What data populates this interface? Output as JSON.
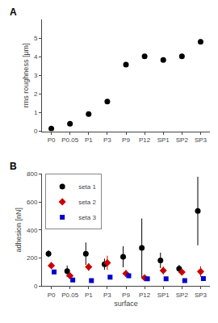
{
  "chart_data": [
    {
      "type": "scatter",
      "annotations": [
        "A"
      ],
      "categories": [
        "P0",
        "P0.05",
        "P1",
        "P3",
        "P9",
        "P12",
        "SP1",
        "SP2",
        "SP3"
      ],
      "values": [
        0.15,
        0.4,
        0.92,
        1.6,
        3.58,
        4.02,
        3.82,
        4.02,
        4.8
      ],
      "errors": [
        0.04,
        0.04,
        0.06,
        0.06,
        0.06,
        0.06,
        0.06,
        0.06,
        0.06
      ],
      "color": "#000000",
      "marker": "circle",
      "ylabel": "rms roughness [μm]",
      "ylim": [
        0,
        6
      ],
      "yticks": [
        0,
        1,
        2,
        3,
        4,
        5
      ],
      "grid": false
    },
    {
      "type": "scatter",
      "annotations": [
        "B"
      ],
      "categories": [
        "P0",
        "P0.05",
        "P1",
        "P3",
        "P9",
        "P12",
        "SP1",
        "SP2",
        "SP3"
      ],
      "series": [
        {
          "name": "seta 1",
          "color": "#000000",
          "marker": "circle",
          "values": [
            230,
            105,
            230,
            155,
            208,
            272,
            182,
            122,
            535
          ],
          "errors": [
            25,
            40,
            80,
            40,
            75,
            210,
            55,
            28,
            245
          ]
        },
        {
          "name": "seta 2",
          "color": "#cc0000",
          "marker": "diamond",
          "values": [
            145,
            72,
            135,
            165,
            88,
            58,
            110,
            98,
            102
          ],
          "errors": [
            22,
            15,
            28,
            50,
            25,
            18,
            28,
            16,
            38
          ]
        },
        {
          "name": "seta 3",
          "color": "#0000cc",
          "marker": "square",
          "values": [
            100,
            42,
            38,
            62,
            72,
            50,
            50,
            38,
            52
          ],
          "errors": [
            16,
            10,
            10,
            16,
            16,
            14,
            10,
            9,
            16
          ]
        }
      ],
      "xlabel": "surface",
      "ylabel": "adhesion [nN]",
      "ylim": [
        0,
        800
      ],
      "yticks": [
        0,
        200,
        400,
        600,
        800
      ],
      "legend": "upper left",
      "grid": false
    }
  ]
}
